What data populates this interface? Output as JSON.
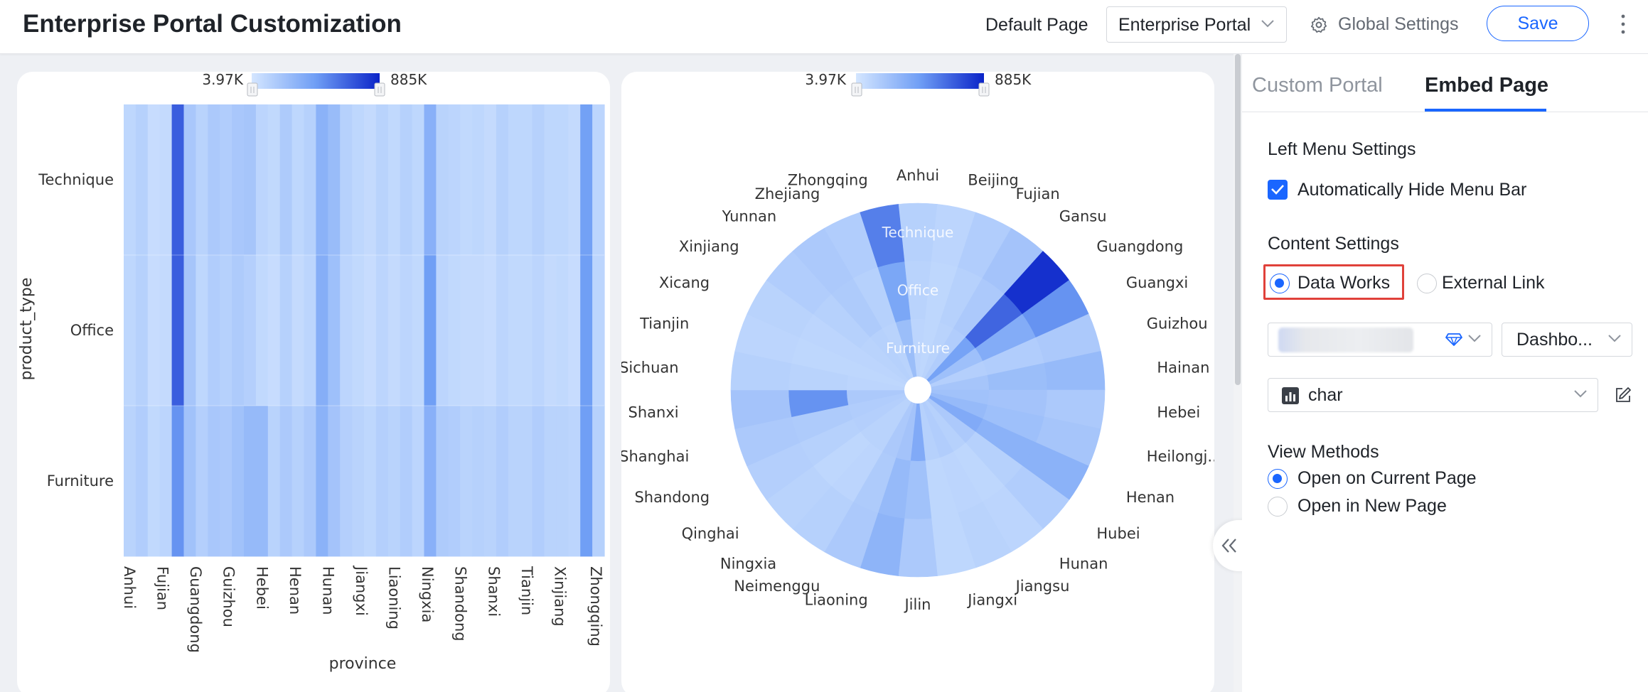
{
  "header": {
    "title": "Enterprise Portal Customization",
    "default_page_label": "Default Page",
    "default_page_value": "Enterprise Portal",
    "global_settings_label": "Global Settings",
    "save_label": "Save"
  },
  "chart_data": [
    {
      "type": "heatmap",
      "xlabel": "province",
      "ylabel": "product_type",
      "x_tick_labels": [
        "Anhui",
        "Fujian",
        "Guangdong",
        "Guizhou",
        "Hebei",
        "Henan",
        "Hunan",
        "Jiangxi",
        "Liaoning",
        "Ningxia",
        "Shandong",
        "Shanxi",
        "Tianjin",
        "Xinjiang",
        "Zhongqing"
      ],
      "y_categories": [
        "Technique",
        "Office",
        "Furniture"
      ],
      "legend": {
        "min_label": "3.97K",
        "max_label": "885K",
        "position": "top",
        "min": 3970,
        "max": 885000
      },
      "cell_values": [
        [
          230000,
          260000,
          200000,
          210000,
          720000,
          310000,
          250000,
          300000,
          280000,
          310000,
          320000,
          240000,
          220000,
          290000,
          230000,
          260000,
          420000,
          370000,
          260000,
          230000,
          210000,
          250000,
          220000,
          260000,
          230000,
          430000,
          250000,
          240000,
          220000,
          230000,
          210000,
          260000,
          230000,
          230000,
          260000,
          230000,
          230000,
          210000,
          510000,
          240000
        ],
        [
          230000,
          260000,
          200000,
          210000,
          720000,
          320000,
          230000,
          280000,
          260000,
          290000,
          270000,
          220000,
          200000,
          260000,
          210000,
          240000,
          440000,
          350000,
          240000,
          220000,
          200000,
          240000,
          210000,
          240000,
          220000,
          520000,
          240000,
          220000,
          210000,
          210000,
          200000,
          240000,
          220000,
          220000,
          240000,
          210000,
          220000,
          200000,
          520000,
          240000
        ],
        [
          250000,
          280000,
          220000,
          240000,
          560000,
          340000,
          270000,
          310000,
          300000,
          340000,
          380000,
          380000,
          250000,
          300000,
          260000,
          300000,
          420000,
          330000,
          270000,
          250000,
          230000,
          270000,
          250000,
          280000,
          240000,
          430000,
          290000,
          280000,
          250000,
          260000,
          250000,
          280000,
          250000,
          250000,
          280000,
          250000,
          250000,
          240000,
          520000,
          260000
        ]
      ]
    },
    {
      "type": "polar-heatmap",
      "rings": [
        "Technique",
        "Office",
        "Furniture"
      ],
      "categories": [
        "Anhui",
        "Beijing",
        "Fujian",
        "Gansu",
        "Guangdong",
        "Guangxi",
        "Guizhou",
        "Hainan",
        "Hebei",
        "Heilongj...",
        "Henan",
        "Hubei",
        "Hunan",
        "Jiangsu",
        "Jiangxi",
        "Jilin",
        "Liaoning",
        "Neimenggu",
        "Ningxia",
        "Qinghai",
        "Shandong",
        "Shanghai",
        "Shanxi",
        "Sichuan",
        "Tianjin",
        "Xicang",
        "Xinjiang",
        "Yunnan",
        "Zhejiang",
        "Zhongqing"
      ],
      "legend": {
        "min_label": "3.97K",
        "max_label": "885K",
        "position": "top",
        "min": 3970,
        "max": 885000
      },
      "values": [
        [
          260000,
          240000,
          280000,
          330000,
          860000,
          560000,
          300000,
          380000,
          300000,
          320000,
          420000,
          280000,
          240000,
          250000,
          230000,
          300000,
          410000,
          300000,
          260000,
          250000,
          270000,
          300000,
          330000,
          260000,
          240000,
          250000,
          280000,
          300000,
          280000,
          620000
        ],
        [
          250000,
          230000,
          260000,
          300000,
          700000,
          450000,
          280000,
          360000,
          330000,
          350000,
          420000,
          260000,
          230000,
          240000,
          230000,
          340000,
          380000,
          290000,
          240000,
          230000,
          260000,
          290000,
          560000,
          250000,
          230000,
          240000,
          260000,
          290000,
          260000,
          480000
        ],
        [
          240000,
          230000,
          250000,
          280000,
          500000,
          350000,
          270000,
          320000,
          340000,
          380000,
          460000,
          300000,
          260000,
          280000,
          260000,
          460000,
          330000,
          300000,
          250000,
          250000,
          270000,
          280000,
          300000,
          240000,
          230000,
          240000,
          250000,
          260000,
          250000,
          360000
        ]
      ]
    }
  ],
  "panel": {
    "tabs": [
      "Custom Portal",
      "Embed Page"
    ],
    "left_menu": {
      "title": "Left Menu Settings",
      "auto_hide_label": "Automatically Hide Menu Bar",
      "auto_hide_checked": true
    },
    "content": {
      "title": "Content Settings",
      "option_data_works": "Data Works",
      "option_external_link": "External Link",
      "selected": "Data Works",
      "workspace_icon": "diamond-icon",
      "type_select": "Dashbo...",
      "resource_select": "char"
    },
    "view": {
      "title": "View Methods",
      "option_current": "Open on Current Page",
      "option_new": "Open in New Page",
      "selected": "Open on Current Page"
    }
  },
  "colors": {
    "accent": "#1a66ff",
    "highlight": "#e0413a",
    "heat_min": "#bdd7ff",
    "heat_max": "#0022cc"
  }
}
